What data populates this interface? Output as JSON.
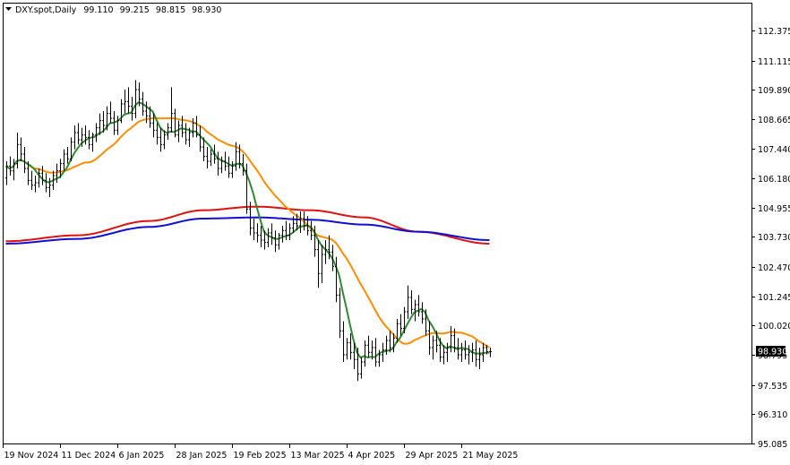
{
  "header": {
    "symbol": "DXY.spot,Daily",
    "open": "99.110",
    "high": "99.215",
    "low": "98.815",
    "close": "98.930"
  },
  "chart_data": {
    "type": "ohlc",
    "title": "DXY.spot,Daily",
    "ylim": [
      95.085,
      113.6
    ],
    "y_ticks": [
      "112.375",
      "111.115",
      "109.890",
      "108.665",
      "107.440",
      "106.180",
      "104.955",
      "103.730",
      "102.470",
      "101.245",
      "100.020",
      "98.795",
      "97.535",
      "96.310",
      "95.085"
    ],
    "x_labels": [
      "19 Nov 2024",
      "11 Dec 2024",
      "6 Jan 2025",
      "28 Jan 2025",
      "19 Feb 2025",
      "13 Mar 2025",
      "4 Apr 2025",
      "29 Apr 2025",
      "21 May 2025"
    ],
    "x_label_bar_index": [
      0,
      16,
      32,
      48,
      64,
      80,
      96,
      112,
      128
    ],
    "bar_count": 140,
    "current_price": "98.930",
    "current_price_value": 98.93,
    "colors": {
      "bars": "#000000",
      "ma_fast": "#2e8b2e",
      "ma_mid": "#ff8c00",
      "ma_red": "#e01010",
      "ma_blue": "#1010d0",
      "price_tag": "#000000"
    },
    "bars_ohlc": [
      [
        106.2,
        106.9,
        105.9,
        106.7
      ],
      [
        106.7,
        107.1,
        106.3,
        106.5
      ],
      [
        106.5,
        107.0,
        106.1,
        106.8
      ],
      [
        106.8,
        108.1,
        106.6,
        107.6
      ],
      [
        107.6,
        107.9,
        106.9,
        107.2
      ],
      [
        107.2,
        107.5,
        106.4,
        106.6
      ],
      [
        106.6,
        106.9,
        105.9,
        106.1
      ],
      [
        106.1,
        106.5,
        105.7,
        105.9
      ],
      [
        105.9,
        106.3,
        105.6,
        106.0
      ],
      [
        106.0,
        106.6,
        105.8,
        106.4
      ],
      [
        106.4,
        106.7,
        105.9,
        106.1
      ],
      [
        106.1,
        106.4,
        105.6,
        105.8
      ],
      [
        105.8,
        106.2,
        105.4,
        105.9
      ],
      [
        105.9,
        106.5,
        105.7,
        106.3
      ],
      [
        106.3,
        106.8,
        106.0,
        106.5
      ],
      [
        106.5,
        107.0,
        106.2,
        106.8
      ],
      [
        106.8,
        107.4,
        106.5,
        107.2
      ],
      [
        107.2,
        107.5,
        106.8,
        107.0
      ],
      [
        107.0,
        107.9,
        106.9,
        107.7
      ],
      [
        107.7,
        108.4,
        107.4,
        108.1
      ],
      [
        108.1,
        108.5,
        107.6,
        107.8
      ],
      [
        107.8,
        108.3,
        107.5,
        108.0
      ],
      [
        108.0,
        108.4,
        107.6,
        107.9
      ],
      [
        107.9,
        108.2,
        107.4,
        107.6
      ],
      [
        107.6,
        108.1,
        107.3,
        108.0
      ],
      [
        108.0,
        108.5,
        107.7,
        108.3
      ],
      [
        108.3,
        108.9,
        108.0,
        108.6
      ],
      [
        108.6,
        109.0,
        108.1,
        108.4
      ],
      [
        108.4,
        109.2,
        108.2,
        108.9
      ],
      [
        108.9,
        109.4,
        108.5,
        108.7
      ],
      [
        108.7,
        109.0,
        108.0,
        108.2
      ],
      [
        108.2,
        108.8,
        108.0,
        108.6
      ],
      [
        108.6,
        109.5,
        108.5,
        109.3
      ],
      [
        109.3,
        109.9,
        108.9,
        109.4
      ],
      [
        109.4,
        110.0,
        108.9,
        109.2
      ],
      [
        109.2,
        109.6,
        108.6,
        108.9
      ],
      [
        108.9,
        110.3,
        108.7,
        109.9
      ],
      [
        109.9,
        110.2,
        109.2,
        109.5
      ],
      [
        109.5,
        109.8,
        108.8,
        109.0
      ],
      [
        109.0,
        109.4,
        108.5,
        108.8
      ],
      [
        108.8,
        109.2,
        108.3,
        108.5
      ],
      [
        108.5,
        108.9,
        107.9,
        108.2
      ],
      [
        108.2,
        108.5,
        107.6,
        107.9
      ],
      [
        107.9,
        108.3,
        107.3,
        107.6
      ],
      [
        107.6,
        108.2,
        107.4,
        108.0
      ],
      [
        108.0,
        108.5,
        107.8,
        108.3
      ],
      [
        108.3,
        110.0,
        108.1,
        108.9
      ],
      [
        108.9,
        109.1,
        107.9,
        108.0
      ],
      [
        108.0,
        108.6,
        107.7,
        108.4
      ],
      [
        108.4,
        108.8,
        107.9,
        108.1
      ],
      [
        108.1,
        108.5,
        107.6,
        107.8
      ],
      [
        107.8,
        108.3,
        107.5,
        108.1
      ],
      [
        108.1,
        108.7,
        107.9,
        108.5
      ],
      [
        108.5,
        108.8,
        107.9,
        108.0
      ],
      [
        108.0,
        108.4,
        107.3,
        107.5
      ],
      [
        107.5,
        107.9,
        106.9,
        107.1
      ],
      [
        107.1,
        107.5,
        106.6,
        106.9
      ],
      [
        106.9,
        107.4,
        106.7,
        107.2
      ],
      [
        107.2,
        107.6,
        106.8,
        107.0
      ],
      [
        107.0,
        107.3,
        106.3,
        106.6
      ],
      [
        106.6,
        107.1,
        106.4,
        106.9
      ],
      [
        106.9,
        107.3,
        106.5,
        106.7
      ],
      [
        106.7,
        107.1,
        106.2,
        106.4
      ],
      [
        106.4,
        106.9,
        106.2,
        106.7
      ],
      [
        106.7,
        107.7,
        106.5,
        107.3
      ],
      [
        107.3,
        107.6,
        106.6,
        106.8
      ],
      [
        106.8,
        107.2,
        106.3,
        106.5
      ],
      [
        106.5,
        106.8,
        104.7,
        104.9
      ],
      [
        104.9,
        105.2,
        103.8,
        104.1
      ],
      [
        104.1,
        104.5,
        103.6,
        103.9
      ],
      [
        103.9,
        104.3,
        103.5,
        103.8
      ],
      [
        103.8,
        104.2,
        103.3,
        103.6
      ],
      [
        103.6,
        104.0,
        103.2,
        103.5
      ],
      [
        103.5,
        104.1,
        103.3,
        103.9
      ],
      [
        103.9,
        104.3,
        103.4,
        103.7
      ],
      [
        103.7,
        104.0,
        103.1,
        103.4
      ],
      [
        103.4,
        103.9,
        103.2,
        103.8
      ],
      [
        103.8,
        104.2,
        103.5,
        104.0
      ],
      [
        104.0,
        104.4,
        103.6,
        103.8
      ],
      [
        103.8,
        104.3,
        103.6,
        104.1
      ],
      [
        104.1,
        104.6,
        103.9,
        104.3
      ],
      [
        104.3,
        104.7,
        104.0,
        104.2
      ],
      [
        104.2,
        104.8,
        103.9,
        104.5
      ],
      [
        104.5,
        104.8,
        104.0,
        104.2
      ],
      [
        104.2,
        104.6,
        103.8,
        104.0
      ],
      [
        104.0,
        104.4,
        103.6,
        103.8
      ],
      [
        103.8,
        104.2,
        102.9,
        103.2
      ],
      [
        103.2,
        103.6,
        101.6,
        102.2
      ],
      [
        102.2,
        103.4,
        101.8,
        103.0
      ],
      [
        103.0,
        103.6,
        102.6,
        103.2
      ],
      [
        103.2,
        103.8,
        102.8,
        103.1
      ],
      [
        103.1,
        103.4,
        102.3,
        102.5
      ],
      [
        102.5,
        102.9,
        101.0,
        101.3
      ],
      [
        101.3,
        101.6,
        99.5,
        99.8
      ],
      [
        99.8,
        100.2,
        98.5,
        98.8
      ],
      [
        98.8,
        99.5,
        98.6,
        99.3
      ],
      [
        99.3,
        99.7,
        98.6,
        98.9
      ],
      [
        98.9,
        99.3,
        98.2,
        98.6
      ],
      [
        98.6,
        99.1,
        97.7,
        98.0
      ],
      [
        98.0,
        98.7,
        97.8,
        98.5
      ],
      [
        98.5,
        99.4,
        98.3,
        99.2
      ],
      [
        99.2,
        99.6,
        98.7,
        98.9
      ],
      [
        98.9,
        99.4,
        98.6,
        99.1
      ],
      [
        99.1,
        99.5,
        98.3,
        98.5
      ],
      [
        98.5,
        99.0,
        98.3,
        98.8
      ],
      [
        98.8,
        99.3,
        98.5,
        99.0
      ],
      [
        99.0,
        99.6,
        98.8,
        99.4
      ],
      [
        99.4,
        99.8,
        98.9,
        99.1
      ],
      [
        99.1,
        99.7,
        98.9,
        99.5
      ],
      [
        99.5,
        100.3,
        99.3,
        100.1
      ],
      [
        100.1,
        100.5,
        99.6,
        99.9
      ],
      [
        99.9,
        100.8,
        99.7,
        100.6
      ],
      [
        100.6,
        101.7,
        100.3,
        101.2
      ],
      [
        101.2,
        101.5,
        100.5,
        100.7
      ],
      [
        100.7,
        101.1,
        100.2,
        100.9
      ],
      [
        100.9,
        101.3,
        100.4,
        100.6
      ],
      [
        100.6,
        101.0,
        100.1,
        100.3
      ],
      [
        100.3,
        100.7,
        99.6,
        99.8
      ],
      [
        99.8,
        100.2,
        98.8,
        99.1
      ],
      [
        99.1,
        99.6,
        98.6,
        99.4
      ],
      [
        99.4,
        99.8,
        98.9,
        99.2
      ],
      [
        99.2,
        99.5,
        98.5,
        98.7
      ],
      [
        98.7,
        99.2,
        98.4,
        98.9
      ],
      [
        98.9,
        99.3,
        98.5,
        99.1
      ],
      [
        99.1,
        100.0,
        98.9,
        99.6
      ],
      [
        99.6,
        99.9,
        98.9,
        99.1
      ],
      [
        99.1,
        99.5,
        98.6,
        98.8
      ],
      [
        98.8,
        99.3,
        98.5,
        99.0
      ],
      [
        99.0,
        99.4,
        98.6,
        98.8
      ],
      [
        98.8,
        99.2,
        98.4,
        98.9
      ],
      [
        98.9,
        99.3,
        98.5,
        99.0
      ],
      [
        99.0,
        99.4,
        98.3,
        98.6
      ],
      [
        98.6,
        99.1,
        98.2,
        98.8
      ],
      [
        98.8,
        99.3,
        98.5,
        99.1
      ],
      [
        99.1,
        99.215,
        98.815,
        98.93
      ],
      [
        98.93,
        99.1,
        98.7,
        98.93
      ]
    ],
    "ma_red": [
      [
        0,
        103.55
      ],
      [
        20,
        103.8
      ],
      [
        40,
        104.4
      ],
      [
        55,
        104.85
      ],
      [
        70,
        105.0
      ],
      [
        85,
        104.85
      ],
      [
        100,
        104.55
      ],
      [
        115,
        103.95
      ],
      [
        135,
        103.45
      ]
    ],
    "ma_blue": [
      [
        0,
        103.45
      ],
      [
        20,
        103.65
      ],
      [
        40,
        104.15
      ],
      [
        55,
        104.5
      ],
      [
        70,
        104.55
      ],
      [
        85,
        104.45
      ],
      [
        100,
        104.25
      ],
      [
        115,
        103.95
      ],
      [
        135,
        103.6
      ]
    ]
  }
}
